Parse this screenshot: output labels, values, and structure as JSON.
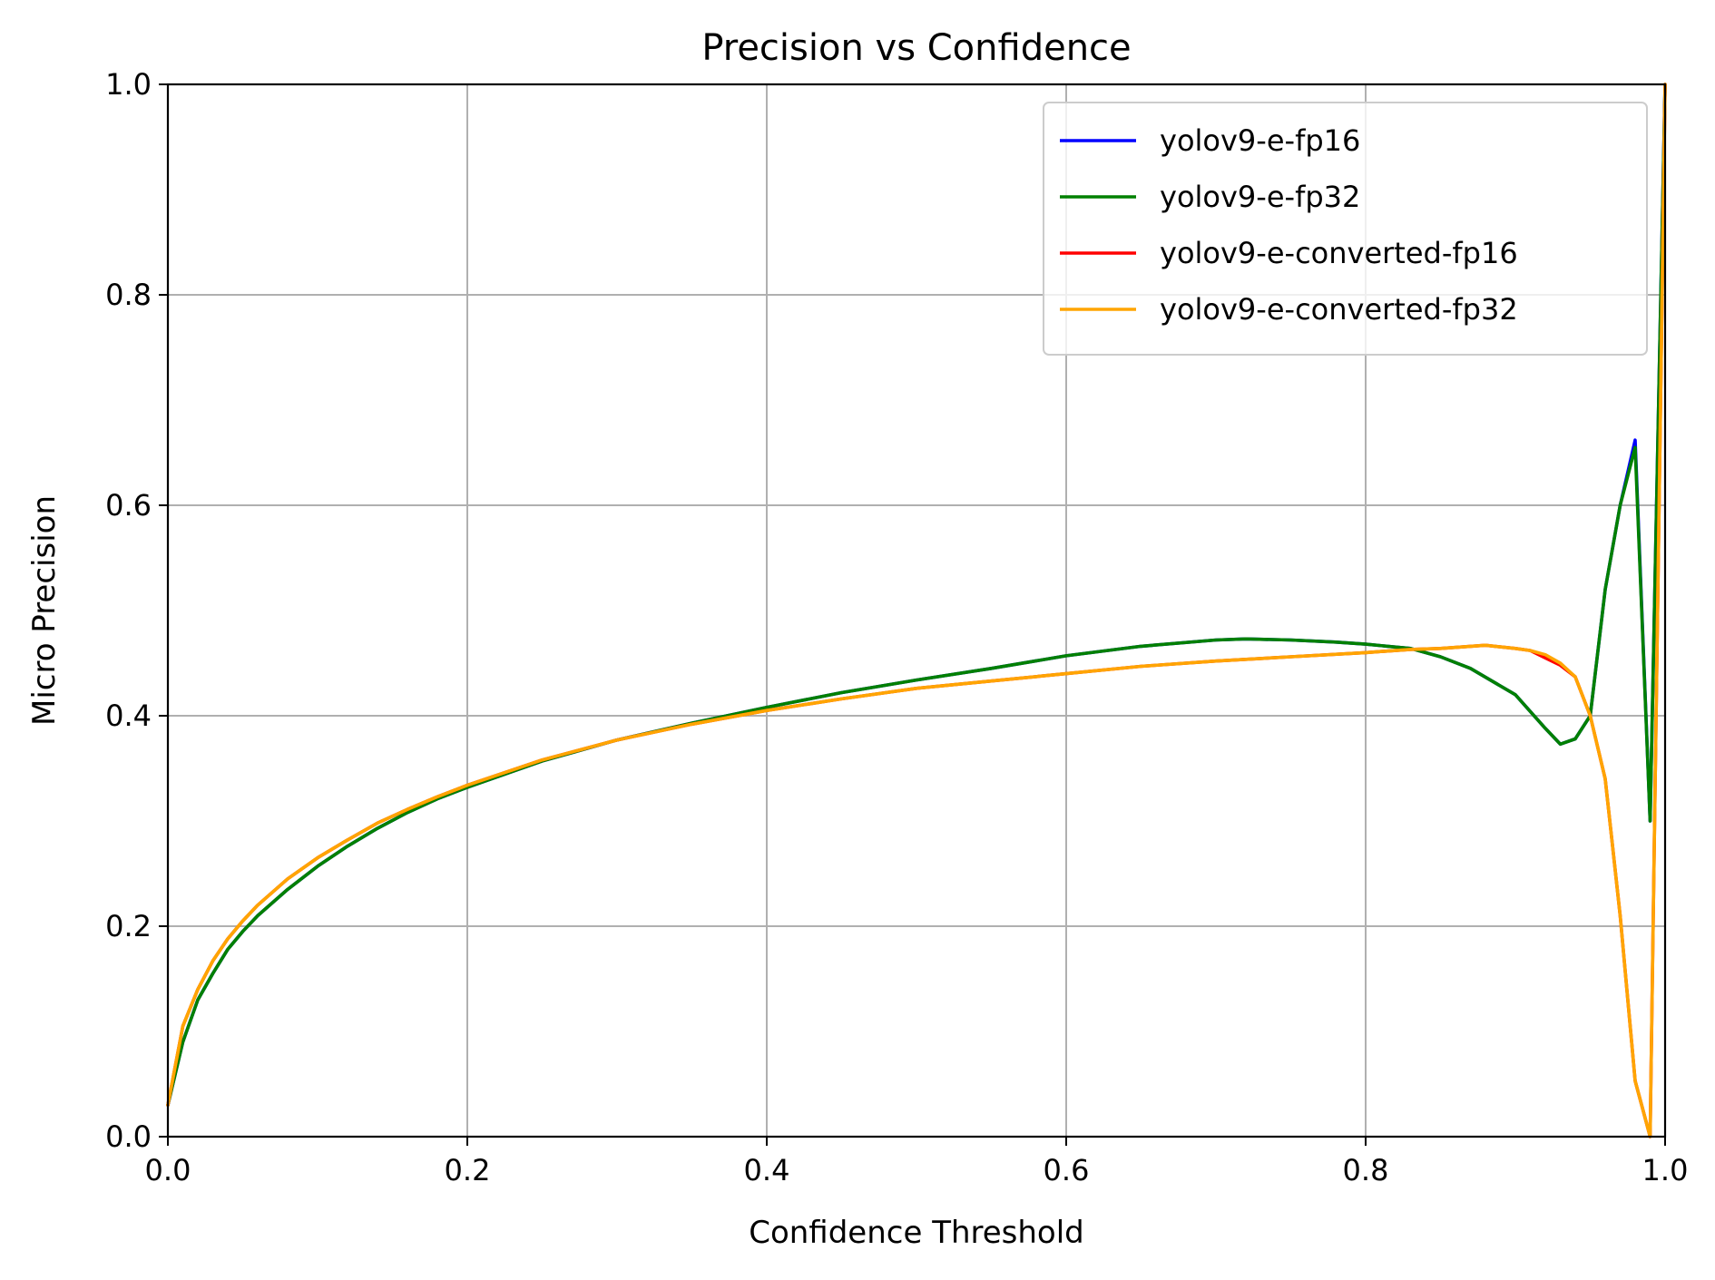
{
  "chart_data": {
    "type": "line",
    "title": "Precision vs Confidence",
    "xlabel": "Confidence Threshold",
    "ylabel": "Micro Precision",
    "xlim": [
      0,
      1
    ],
    "ylim": [
      0,
      1
    ],
    "xticks": [
      "0.0",
      "0.2",
      "0.4",
      "0.6",
      "0.8",
      "1.0"
    ],
    "yticks": [
      "0.0",
      "0.2",
      "0.4",
      "0.6",
      "0.8",
      "1.0"
    ],
    "grid": true,
    "legend_position": "top-right",
    "series": [
      {
        "name": "yolov9-e-fp16",
        "color": "#0000ff",
        "x": [
          0,
          0.01,
          0.02,
          0.03,
          0.04,
          0.05,
          0.06,
          0.08,
          0.1,
          0.12,
          0.14,
          0.16,
          0.18,
          0.2,
          0.25,
          0.3,
          0.35,
          0.4,
          0.45,
          0.5,
          0.55,
          0.6,
          0.65,
          0.7,
          0.72,
          0.75,
          0.78,
          0.8,
          0.83,
          0.85,
          0.87,
          0.9,
          0.92,
          0.93,
          0.94,
          0.95,
          0.96,
          0.97,
          0.98,
          0.99,
          1.0
        ],
        "y": [
          0.03,
          0.09,
          0.13,
          0.155,
          0.178,
          0.195,
          0.21,
          0.235,
          0.257,
          0.276,
          0.293,
          0.308,
          0.321,
          0.332,
          0.357,
          0.377,
          0.393,
          0.408,
          0.422,
          0.434,
          0.445,
          0.457,
          0.466,
          0.472,
          0.473,
          0.472,
          0.47,
          0.468,
          0.464,
          0.456,
          0.445,
          0.42,
          0.388,
          0.373,
          0.378,
          0.4,
          0.52,
          0.6,
          0.662,
          0.3,
          1.0
        ]
      },
      {
        "name": "yolov9-e-fp32",
        "color": "#008000",
        "x": [
          0,
          0.01,
          0.02,
          0.03,
          0.04,
          0.05,
          0.06,
          0.08,
          0.1,
          0.12,
          0.14,
          0.16,
          0.18,
          0.2,
          0.25,
          0.3,
          0.35,
          0.4,
          0.45,
          0.5,
          0.55,
          0.6,
          0.65,
          0.7,
          0.72,
          0.75,
          0.78,
          0.8,
          0.83,
          0.85,
          0.87,
          0.9,
          0.92,
          0.93,
          0.94,
          0.95,
          0.96,
          0.97,
          0.98,
          0.99,
          1.0
        ],
        "y": [
          0.03,
          0.09,
          0.13,
          0.155,
          0.178,
          0.195,
          0.21,
          0.235,
          0.257,
          0.276,
          0.293,
          0.308,
          0.321,
          0.332,
          0.357,
          0.377,
          0.393,
          0.408,
          0.422,
          0.434,
          0.445,
          0.457,
          0.466,
          0.472,
          0.473,
          0.472,
          0.47,
          0.468,
          0.464,
          0.456,
          0.445,
          0.42,
          0.388,
          0.373,
          0.378,
          0.4,
          0.52,
          0.6,
          0.655,
          0.3,
          1.0
        ]
      },
      {
        "name": "yolov9-e-converted-fp16",
        "color": "#ff0000",
        "x": [
          0,
          0.01,
          0.02,
          0.03,
          0.04,
          0.05,
          0.06,
          0.08,
          0.1,
          0.12,
          0.14,
          0.16,
          0.18,
          0.2,
          0.25,
          0.3,
          0.35,
          0.4,
          0.45,
          0.5,
          0.55,
          0.6,
          0.65,
          0.7,
          0.75,
          0.8,
          0.83,
          0.85,
          0.88,
          0.9,
          0.91,
          0.92,
          0.93,
          0.94,
          0.95,
          0.96,
          0.97,
          0.98,
          0.99,
          1.0
        ],
        "y": [
          0.03,
          0.105,
          0.14,
          0.167,
          0.188,
          0.205,
          0.22,
          0.245,
          0.265,
          0.282,
          0.298,
          0.311,
          0.323,
          0.334,
          0.358,
          0.377,
          0.392,
          0.405,
          0.416,
          0.426,
          0.433,
          0.44,
          0.447,
          0.452,
          0.456,
          0.46,
          0.463,
          0.464,
          0.467,
          0.464,
          0.462,
          0.455,
          0.448,
          0.437,
          0.4,
          0.34,
          0.21,
          0.053,
          0.0,
          1.0
        ]
      },
      {
        "name": "yolov9-e-converted-fp32",
        "color": "#ffa500",
        "x": [
          0,
          0.01,
          0.02,
          0.03,
          0.04,
          0.05,
          0.06,
          0.08,
          0.1,
          0.12,
          0.14,
          0.16,
          0.18,
          0.2,
          0.25,
          0.3,
          0.35,
          0.4,
          0.45,
          0.5,
          0.55,
          0.6,
          0.65,
          0.7,
          0.75,
          0.8,
          0.83,
          0.85,
          0.88,
          0.9,
          0.91,
          0.92,
          0.93,
          0.94,
          0.95,
          0.96,
          0.97,
          0.98,
          0.99,
          1.0
        ],
        "y": [
          0.03,
          0.105,
          0.14,
          0.167,
          0.188,
          0.205,
          0.22,
          0.245,
          0.265,
          0.282,
          0.298,
          0.311,
          0.323,
          0.334,
          0.358,
          0.377,
          0.392,
          0.405,
          0.416,
          0.426,
          0.433,
          0.44,
          0.447,
          0.452,
          0.456,
          0.46,
          0.463,
          0.464,
          0.467,
          0.464,
          0.462,
          0.458,
          0.45,
          0.437,
          0.4,
          0.34,
          0.21,
          0.053,
          0.0,
          1.0
        ]
      }
    ]
  }
}
